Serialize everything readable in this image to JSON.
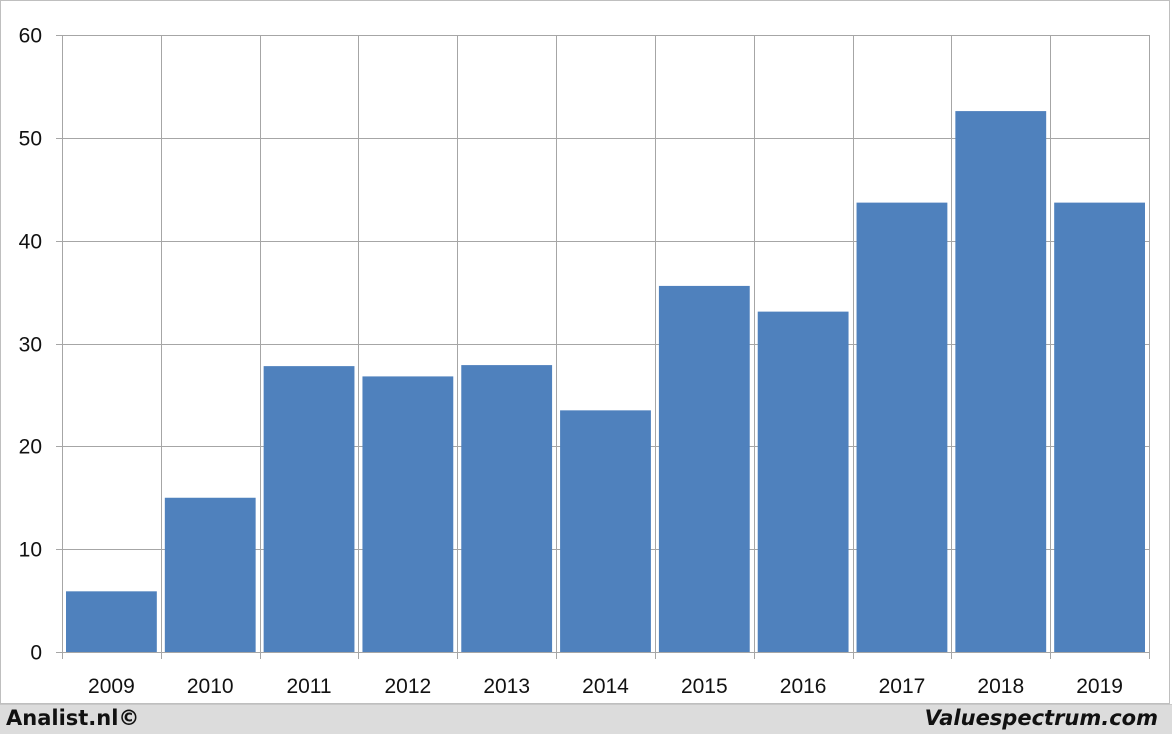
{
  "chart_data": {
    "type": "bar",
    "categories": [
      "2009",
      "2010",
      "2011",
      "2012",
      "2013",
      "2014",
      "2015",
      "2016",
      "2017",
      "2018",
      "2019"
    ],
    "values": [
      5.9,
      15.0,
      27.8,
      26.8,
      27.9,
      23.5,
      35.6,
      33.1,
      43.7,
      52.6,
      43.7
    ],
    "title": "",
    "xlabel": "",
    "ylabel": "",
    "ylim": [
      0,
      60
    ],
    "yticks": [
      0,
      10,
      20,
      30,
      40,
      50,
      60
    ],
    "grid": true,
    "legend": "none",
    "bar_color": "#4f81bd",
    "grid_color": "#a6a6a6"
  },
  "footer": {
    "left_text": "Analist.nl©",
    "right_text": "Valuespectrum.com"
  }
}
